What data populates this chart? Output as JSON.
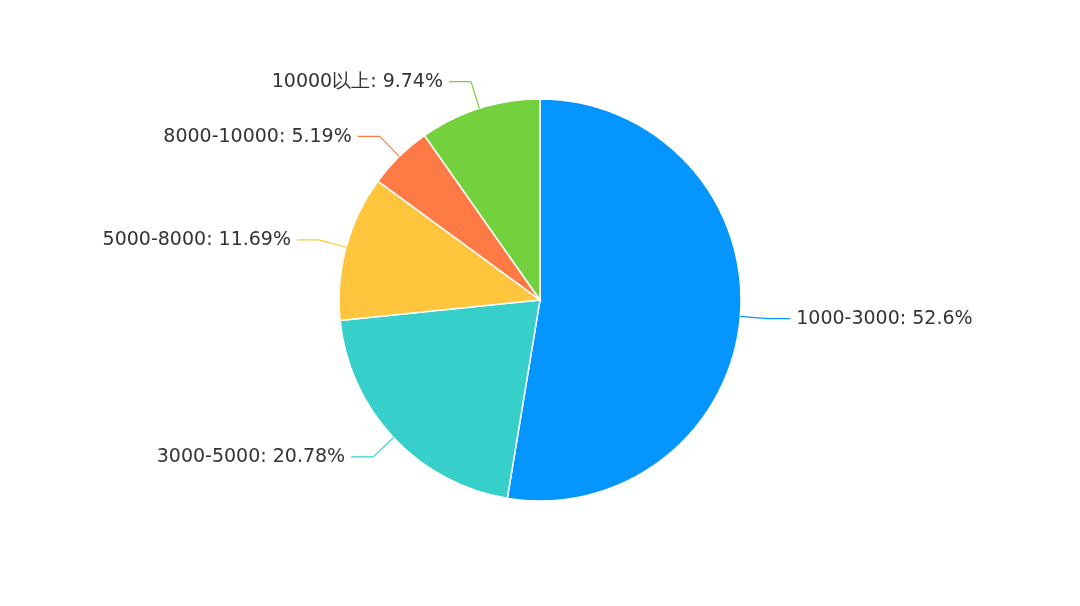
{
  "chart_data": {
    "type": "pie",
    "categories": [
      "1000-3000",
      "3000-5000",
      "5000-8000",
      "8000-10000",
      "10000以上"
    ],
    "values": [
      52.6,
      20.78,
      11.69,
      5.19,
      9.74
    ],
    "value_labels": [
      "52.6%",
      "20.78%",
      "11.69%",
      "5.19%",
      "9.74%"
    ],
    "colors": [
      "#0495ff",
      "#36cfc9",
      "#ffc53d",
      "#ff7a45",
      "#73d13d"
    ]
  }
}
